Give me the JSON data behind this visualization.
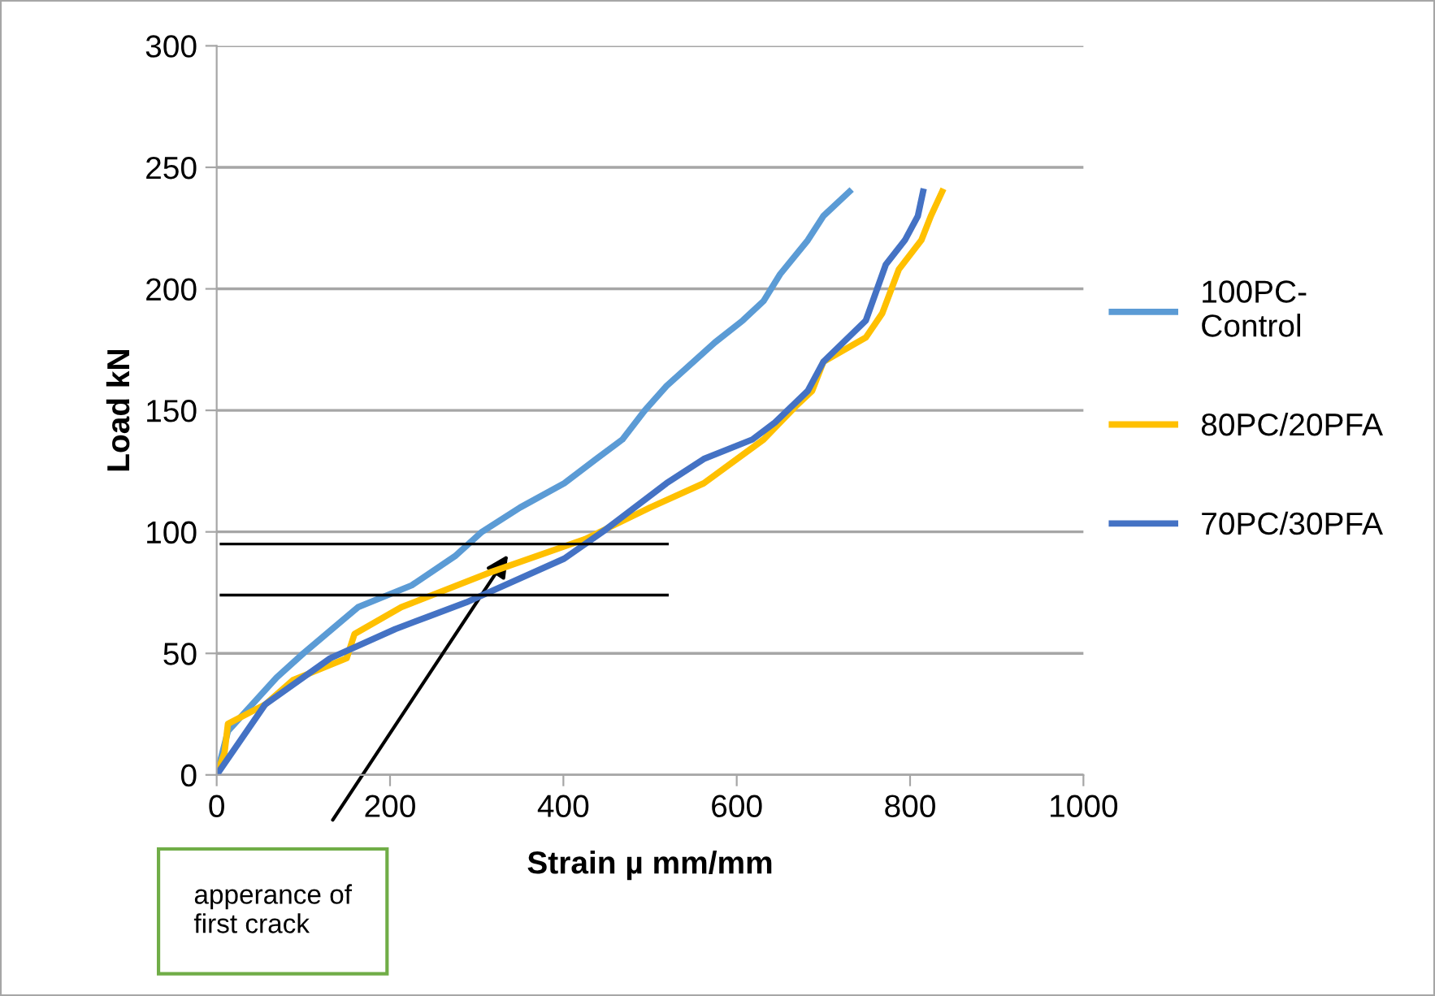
{
  "chart_data": {
    "type": "line",
    "xlabel": "Strain µ mm/mm",
    "ylabel": "Load kN",
    "xlim": [
      0,
      1000
    ],
    "xticks": [
      0,
      200,
      400,
      600,
      800,
      1000
    ],
    "ylim": [
      0,
      300
    ],
    "yticks": [
      0,
      50,
      100,
      150,
      200,
      250,
      300
    ],
    "grid": "y",
    "legend": "right",
    "marker": "none",
    "line_style": "solid",
    "series": [
      {
        "name": "100PC-\nControl",
        "color": "#5b9bd5",
        "x": [
          0,
          13,
          69,
          100,
          163,
          225,
          275,
          306,
          350,
          401,
          438,
          468,
          494,
          519,
          575,
          607,
          631,
          650,
          682,
          700,
          730
        ],
        "values": [
          0,
          18,
          40,
          50,
          69,
          78,
          90,
          100,
          110,
          120,
          130,
          138,
          150,
          160,
          178,
          187,
          195,
          206,
          220,
          230,
          240
        ]
      },
      {
        "name": "80PC/20PFA",
        "color": "#ffc000",
        "x": [
          0,
          9,
          13,
          56,
          88,
          150,
          159,
          213,
          313,
          425,
          500,
          562,
          631,
          669,
          687,
          700,
          749,
          768,
          787,
          813,
          824,
          837
        ],
        "values": [
          0,
          9,
          21,
          29,
          39,
          48,
          58,
          69,
          83,
          97,
          110,
          120,
          138,
          152,
          158,
          170,
          180,
          190,
          208,
          220,
          230,
          240
        ]
      },
      {
        "name": "70PC/30PFA",
        "color": "#4472c4",
        "x": [
          0,
          56,
          131,
          206,
          288,
          401,
          449,
          519,
          562,
          618,
          644,
          682,
          700,
          749,
          772,
          794,
          809,
          815
        ],
        "values": [
          0,
          29,
          48,
          60,
          71,
          89,
          101,
          120,
          130,
          138,
          145,
          158,
          170,
          187,
          210,
          220,
          230,
          240
        ]
      }
    ],
    "ref_lines": [
      {
        "axis": "y",
        "value": 95,
        "color": "#000000",
        "line_style": "solid"
      },
      {
        "axis": "y",
        "value": 74,
        "color": "#000000",
        "line_style": "solid"
      }
    ],
    "annotations": [
      "apperance of\nfirst crack"
    ]
  }
}
